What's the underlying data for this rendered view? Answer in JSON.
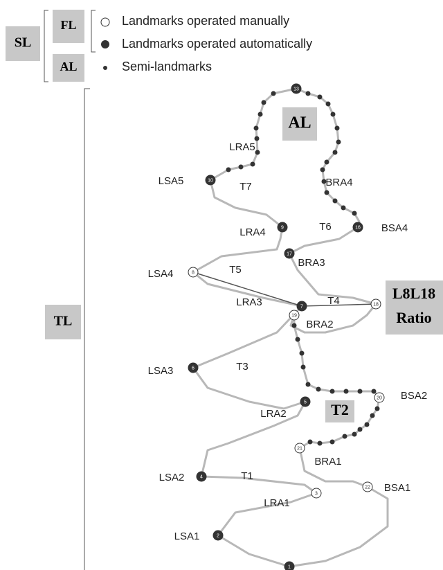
{
  "side": {
    "sl": "SL",
    "fl": "FL",
    "al": "AL",
    "tl": "TL"
  },
  "legend": [
    "Landmarks operated manually",
    "Landmarks operated automatically",
    "Semi-landmarks"
  ],
  "diagram": {
    "al": "AL",
    "ratio": [
      "L8L18",
      "Ratio"
    ],
    "t2": "T2",
    "landmarks": [
      "1",
      "2",
      "3",
      "4",
      "5",
      "6",
      "7",
      "8",
      "9",
      "10",
      "13",
      "16",
      "17",
      "18",
      "19",
      "20",
      "21",
      "22"
    ],
    "labels": [
      "LSA5",
      "T7",
      "BRA4",
      "LRA5",
      "LRA4",
      "T6",
      "BSA4",
      "BRA3",
      "LSA4",
      "T5",
      "LRA3",
      "T4",
      "LSA3",
      "T3",
      "BRA2",
      "BSA2",
      "LRA2",
      "LSA2",
      "T1",
      "BRA1",
      "BSA1",
      "LRA1",
      "LSA1"
    ]
  }
}
